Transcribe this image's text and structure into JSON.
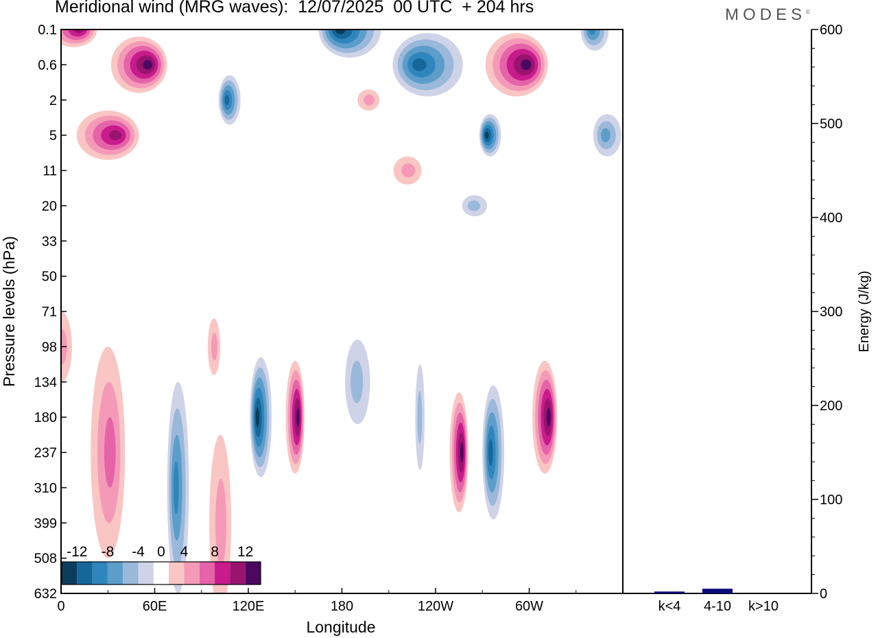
{
  "title": "Meridional wind (MRG waves):  12/07/2025  00 UTC  + 204 hrs",
  "logo": "MODES",
  "colors": {
    "neg": [
      "#0b3d5c",
      "#15679a",
      "#2f86bd",
      "#5d9dca",
      "#99b8da",
      "#cfd3e8"
    ],
    "pos": [
      "#f9c6c4",
      "#f49ab8",
      "#e563a8",
      "#c81b8c",
      "#98146f",
      "#4c0861"
    ],
    "energy_bar": "#0b0b7a"
  },
  "chart_data": [
    {
      "type": "heatmap",
      "title": "Meridional wind (MRG waves):  12/07/2025  00 UTC  + 204 hrs",
      "xlabel": "Longitude",
      "ylabel": "Pressure levels (hPa)",
      "x_ticks": [
        "0",
        "60E",
        "120E",
        "180",
        "120W",
        "60W"
      ],
      "y_ticks": [
        "0.1",
        "0.6",
        "2",
        "5",
        "11",
        "20",
        "33",
        "50",
        "71",
        "98",
        "134",
        "180",
        "237",
        "310",
        "399",
        "508",
        "632"
      ],
      "colorbar": {
        "labels": [
          "-12",
          "-8",
          "-4",
          "0",
          "4",
          "8",
          "12"
        ],
        "levels": [
          -14,
          -12,
          -10,
          -8,
          -6,
          -4,
          -2,
          2,
          4,
          6,
          8,
          10,
          12,
          14
        ]
      },
      "features": [
        {
          "lon": 8,
          "level": "0.1",
          "value": 10,
          "lon_width": 30,
          "lev_width": 1.0
        },
        {
          "lon": 50,
          "level": "0.6",
          "value": 14,
          "lon_width": 36,
          "lev_width": 1.6
        },
        {
          "lon": 30,
          "level": "5",
          "value": 10,
          "lon_width": 40,
          "lev_width": 1.4
        },
        {
          "lon": 108,
          "level": "2",
          "value": -9,
          "lon_width": 14,
          "lev_width": 1.4
        },
        {
          "lon": 185,
          "level": "0.1",
          "value": -12,
          "lon_width": 40,
          "lev_width": 1.6
        },
        {
          "lon": 235,
          "level": "0.6",
          "value": -9,
          "lon_width": 45,
          "lev_width": 1.8
        },
        {
          "lon": 275,
          "level": "5",
          "value": -13,
          "lon_width": 14,
          "lev_width": 1.2
        },
        {
          "lon": 292,
          "level": "0.6",
          "value": 13,
          "lon_width": 40,
          "lev_width": 1.8
        },
        {
          "lon": 342,
          "level": "0.1",
          "value": -7,
          "lon_width": 18,
          "lev_width": 1.2
        },
        {
          "lon": 350,
          "level": "5",
          "value": -6,
          "lon_width": 18,
          "lev_width": 1.2
        },
        {
          "lon": 197,
          "level": "2",
          "value": 4,
          "lon_width": 14,
          "lev_width": 0.6
        },
        {
          "lon": 222,
          "level": "11",
          "value": 3,
          "lon_width": 18,
          "lev_width": 0.8
        },
        {
          "lon": 265,
          "level": "20",
          "value": -3,
          "lon_width": 16,
          "lev_width": 0.6
        },
        {
          "lon": 128,
          "level": "180",
          "value": -14,
          "lon_width": 14,
          "lev_width": 3.4
        },
        {
          "lon": 150,
          "level": "180",
          "value": 11,
          "lon_width": 12,
          "lev_width": 3.2
        },
        {
          "lon": 255,
          "level": "237",
          "value": 13,
          "lon_width": 12,
          "lev_width": 3.4
        },
        {
          "lon": 277,
          "level": "237",
          "value": -10,
          "lon_width": 14,
          "lev_width": 3.8
        },
        {
          "lon": 310,
          "level": "180",
          "value": 12,
          "lon_width": 16,
          "lev_width": 3.2
        },
        {
          "lon": 30,
          "level": "237",
          "value": 6,
          "lon_width": 22,
          "lev_width": 6.0
        },
        {
          "lon": 75,
          "level": "310",
          "value": -7,
          "lon_width": 14,
          "lev_width": 6.0
        },
        {
          "lon": 102,
          "level": "399",
          "value": 4,
          "lon_width": 14,
          "lev_width": 5.0
        },
        {
          "lon": 98,
          "level": "98",
          "value": 4,
          "lon_width": 8,
          "lev_width": 1.6
        },
        {
          "lon": 190,
          "level": "134",
          "value": -3,
          "lon_width": 16,
          "lev_width": 2.4
        },
        {
          "lon": 0,
          "level": "98",
          "value": 4,
          "lon_width": 14,
          "lev_width": 2.0
        },
        {
          "lon": 230,
          "level": "180",
          "value": -3,
          "lon_width": 6,
          "lev_width": 3.0
        }
      ]
    },
    {
      "type": "bar",
      "categories": [
        "k<4",
        "4-10",
        "k>10"
      ],
      "values": [
        2,
        5,
        0
      ],
      "ylabel": "Energy (J/kg)",
      "ylim": [
        0,
        600
      ],
      "y_ticks": [
        "0",
        "100",
        "200",
        "300",
        "400",
        "500",
        "600"
      ]
    }
  ]
}
